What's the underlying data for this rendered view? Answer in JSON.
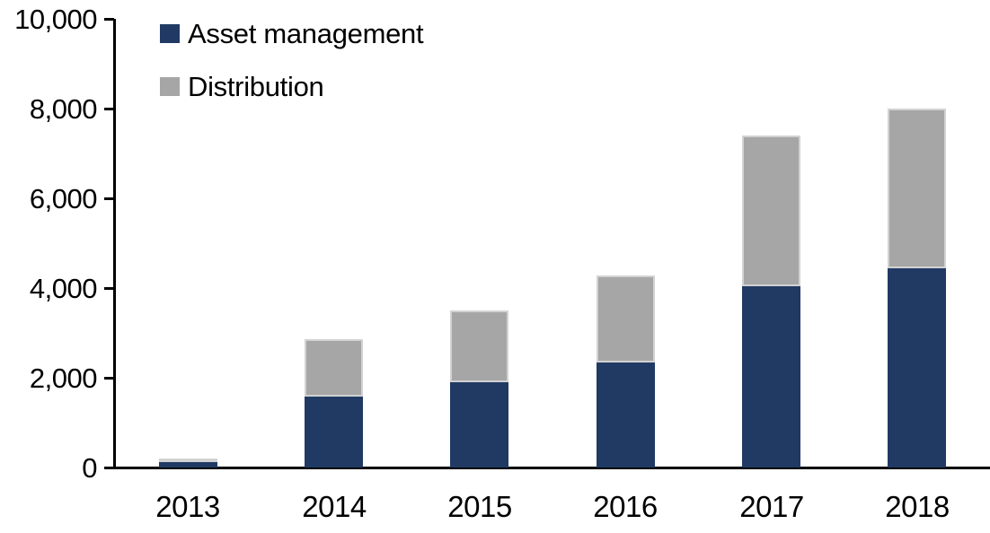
{
  "chart_data": {
    "type": "bar",
    "stacked": true,
    "title": "",
    "xlabel": "",
    "ylabel": "",
    "categories": [
      "2013",
      "2014",
      "2015",
      "2016",
      "2017",
      "2018"
    ],
    "series": [
      {
        "name": "Asset management",
        "color": "#203A64",
        "values": [
          120,
          1580,
          1900,
          2330,
          4040,
          4440
        ]
      },
      {
        "name": "Distribution",
        "color": "#A6A6A6",
        "values": [
          80,
          1280,
          1600,
          1930,
          3360,
          3560
        ]
      }
    ],
    "totals": [
      200,
      2860,
      3500,
      4260,
      7400,
      8000
    ],
    "ylim": [
      0,
      10000
    ],
    "yticks": [
      {
        "value": 0,
        "label": "0"
      },
      {
        "value": 2000,
        "label": "2,000"
      },
      {
        "value": 4000,
        "label": "4,000"
      },
      {
        "value": 6000,
        "label": "6,000"
      },
      {
        "value": 8000,
        "label": "8,000"
      },
      {
        "value": 10000,
        "label": "10,000"
      }
    ],
    "grid": false,
    "legend_position": "top-left"
  },
  "colors": {
    "axis": "#000000",
    "text": "#000000",
    "background": "#FFFFFF",
    "segment_border": "#D9D9D9"
  }
}
